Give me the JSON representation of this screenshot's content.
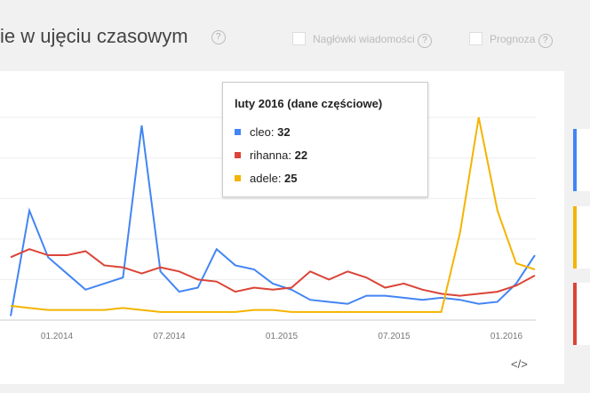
{
  "header": {
    "title": "ie w ujęciu czasowym",
    "help": "?",
    "options": [
      {
        "label": "Nagłówki wiadomości",
        "help": "?"
      },
      {
        "label": "Prognoza",
        "help": "?"
      }
    ]
  },
  "chart_data": {
    "type": "line",
    "categories": [
      null,
      null,
      null,
      null,
      null,
      null,
      null,
      null,
      null,
      null,
      null,
      null,
      null,
      null,
      null,
      null,
      null,
      null,
      null,
      null,
      null,
      null,
      null,
      null,
      null,
      null,
      null,
      null,
      null
    ],
    "xtick_labels": [
      "01.2014",
      "07.2014",
      "01.2015",
      "07.2015",
      "01.2016"
    ],
    "ylim": [
      0,
      100
    ],
    "yticks": [
      20,
      40,
      60,
      80,
      100
    ],
    "grid": true,
    "series": [
      {
        "name": "cleo",
        "color": "#4285f4",
        "values": [
          2,
          54,
          31,
          23,
          15,
          18,
          21,
          96,
          24,
          14,
          16,
          35,
          27,
          25,
          18,
          15,
          10,
          9,
          8,
          12,
          12,
          11,
          10,
          11,
          10,
          8,
          9,
          18,
          32
        ]
      },
      {
        "name": "rihanna",
        "color": "#db4437",
        "values": [
          31,
          35,
          32,
          32,
          34,
          27,
          26,
          23,
          26,
          24,
          20,
          19,
          14,
          16,
          15,
          16,
          24,
          20,
          24,
          21,
          16,
          18,
          15,
          13,
          12,
          13,
          14,
          17,
          22
        ]
      },
      {
        "name": "adele",
        "color": "#f4b400",
        "values": [
          7,
          6,
          5,
          5,
          5,
          5,
          6,
          5,
          4,
          4,
          4,
          4,
          4,
          5,
          5,
          4,
          4,
          4,
          4,
          4,
          4,
          4,
          4,
          4,
          43,
          100,
          54,
          28,
          25
        ]
      }
    ],
    "tooltip": {
      "title": "luty 2016 (dane częściowe)",
      "index": 28
    }
  },
  "footer": {
    "embed": "</>"
  }
}
